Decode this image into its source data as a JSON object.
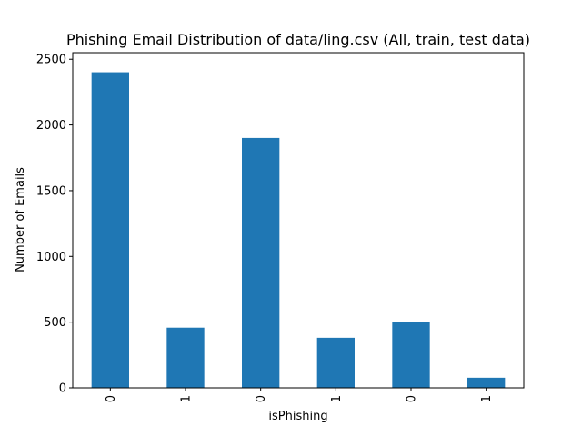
{
  "chart_data": {
    "type": "bar",
    "title": "Phishing Email Distribution of data/ling.csv (All, train, test data)",
    "xlabel": "isPhishing",
    "ylabel": "Number of Emails",
    "categories": [
      "0",
      "1",
      "0",
      "1",
      "0",
      "1"
    ],
    "values": [
      2401,
      458,
      1901,
      381,
      500,
      77
    ],
    "ylim": [
      0,
      2550
    ],
    "yticks": [
      0,
      500,
      1000,
      1500,
      2000,
      2500
    ],
    "bar_color": "#1f77b4",
    "grid": false,
    "legend": "none"
  }
}
